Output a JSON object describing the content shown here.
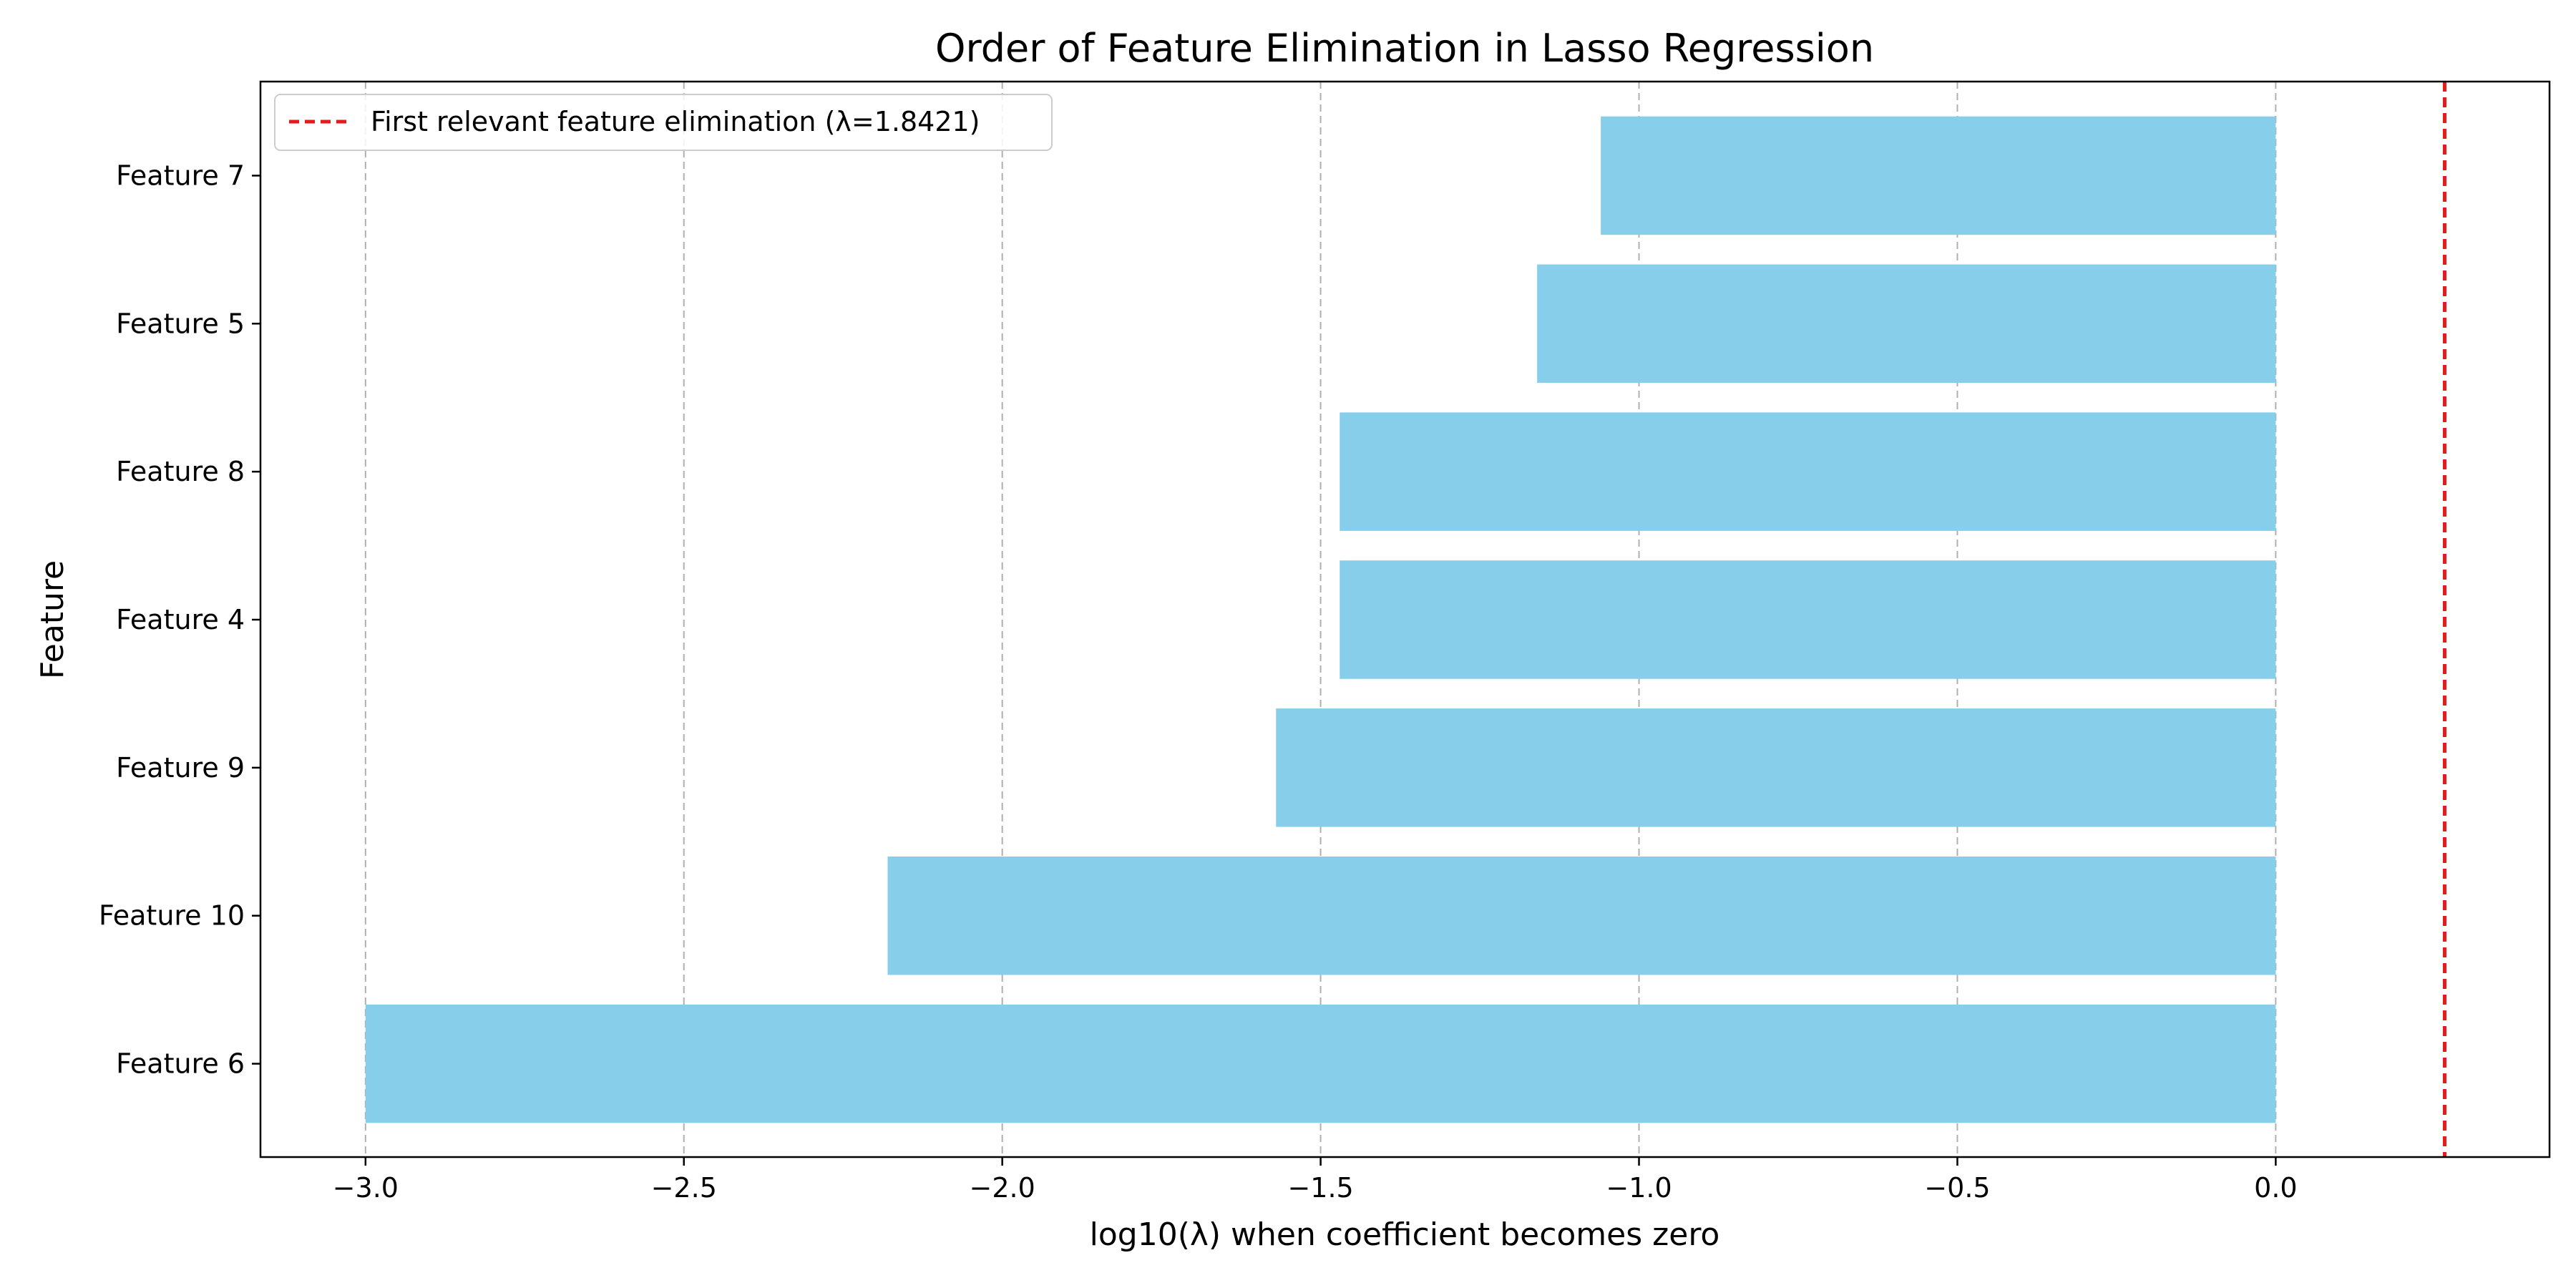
{
  "chart_data": {
    "type": "bar",
    "orientation": "horizontal",
    "title": "Order of Feature Elimination in Lasso Regression",
    "xlabel": "log10(λ) when coefficient becomes zero",
    "ylabel": "Feature",
    "categories": [
      "Feature 7",
      "Feature 5",
      "Feature 8",
      "Feature 4",
      "Feature 9",
      "Feature 10",
      "Feature 6"
    ],
    "values": [
      -1.06,
      -1.16,
      -1.47,
      -1.47,
      -1.57,
      -2.18,
      -3.0
    ],
    "xlim": [
      -3.165,
      0.43
    ],
    "xticks": [
      -3.0,
      -2.5,
      -2.0,
      -1.5,
      -1.0,
      -0.5,
      0.0
    ],
    "xtick_labels": [
      "−3.0",
      "−2.5",
      "−2.0",
      "−1.5",
      "−1.0",
      "−0.5",
      "0.0"
    ],
    "grid": "x, dashed",
    "bar_color": "#87CEEB",
    "reference_line": {
      "x": 0.2653,
      "color": "#e41a1c",
      "style": "dashed",
      "label": "First relevant feature elimination (λ=1.8421)"
    },
    "legend_position": "top-left"
  }
}
